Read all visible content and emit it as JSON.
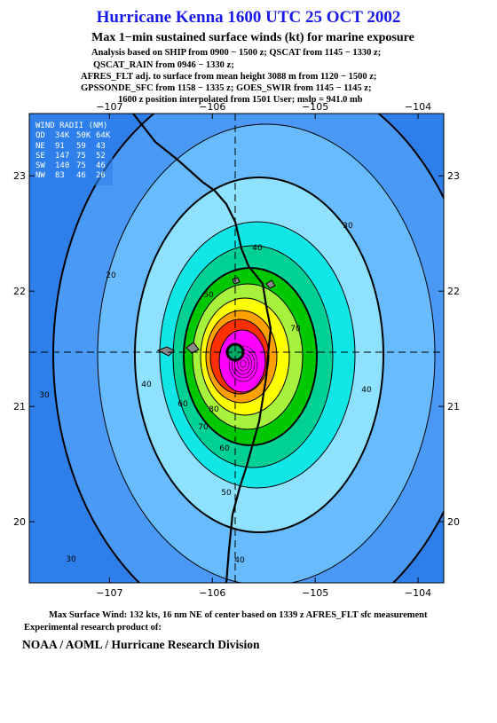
{
  "header": {
    "title": "Hurricane Kenna 1600 UTC 25 OCT 2002",
    "subtitle": "Max 1−min sustained surface winds (kt) for marine exposure",
    "notes": [
      "Analysis based on  SHIP from 0900 − 1500 z;  QSCAT from 1145 − 1330 z;",
      "QSCAT_RAIN from 0946 − 1330 z;",
      "AFRES_FLT adj. to surface from mean height 3088 m from 1120 − 1500 z;",
      "GPSSONDE_SFC from 1158 − 1335 z;  GOES_SWIR from 1145 − 1145 z;",
      "1600 z position interpolated from 1501 User; mslp = 941.0 mb"
    ]
  },
  "map": {
    "xlim": [
      -107.78,
      -103.75
    ],
    "ylim": [
      19.47,
      23.54
    ],
    "xticks": [
      {
        "value": -107,
        "label": "−107"
      },
      {
        "value": -106,
        "label": "−106"
      },
      {
        "value": -105,
        "label": "−105"
      },
      {
        "value": -104,
        "label": "−104"
      }
    ],
    "yticks": [
      20,
      21,
      22,
      23
    ],
    "wind_radii": {
      "title": "WIND RADII (NM)",
      "header": [
        "QD",
        "34K",
        "50K",
        "64K"
      ],
      "rows": [
        [
          "NE",
          "91",
          "59",
          "43"
        ],
        [
          "SE",
          "147",
          "75",
          "52"
        ],
        [
          "SW",
          "140",
          "75",
          "46"
        ],
        [
          "NW",
          "83",
          "46",
          "26"
        ]
      ]
    },
    "contour_labels": [
      "20",
      "30",
      "30",
      "30",
      "40",
      "40",
      "40",
      "40",
      "50",
      "50",
      "60",
      "60",
      "70",
      "70",
      "80"
    ]
  },
  "footer": {
    "max_wind": "Max Surface Wind: 132 kts, 16 nm NE of center based on 1339 z AFRES_FLT sfc measurement",
    "experimental": "Experimental research product of:",
    "org": "NOAA / AOML / Hurricane Research Division"
  }
}
